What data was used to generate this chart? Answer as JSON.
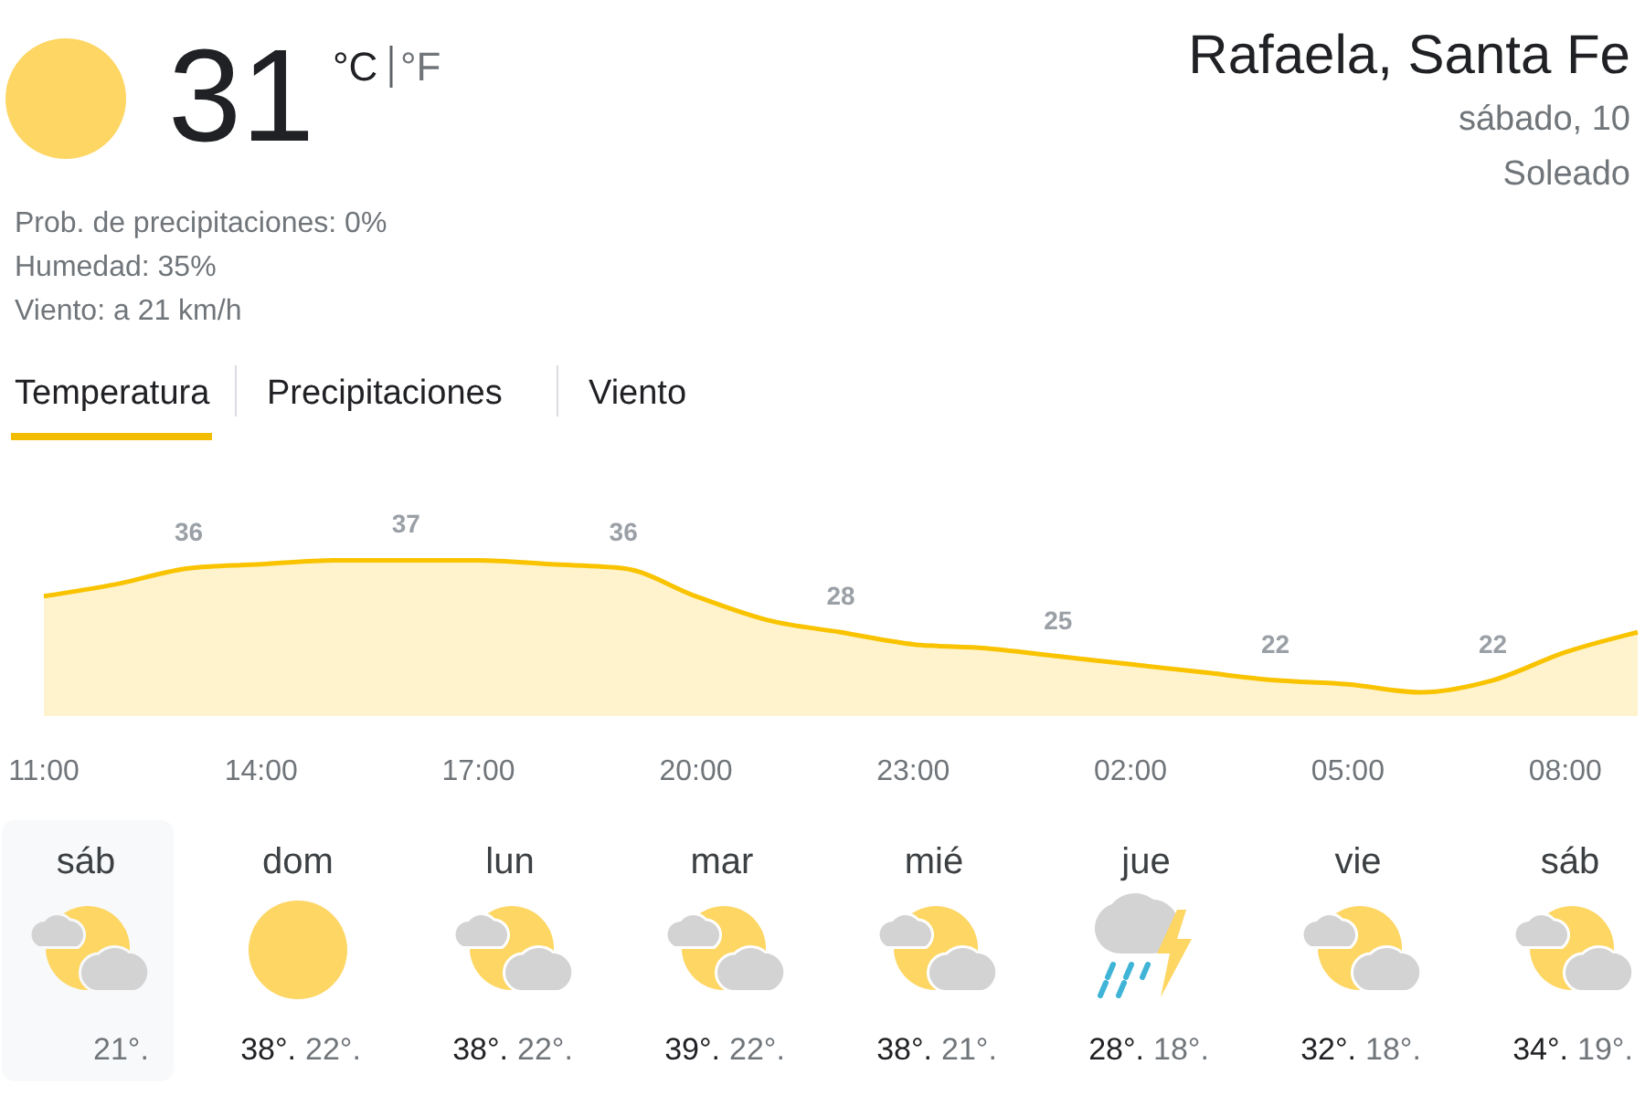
{
  "chart_data": [
    {
      "type": "other",
      "title": "Rafaela, Santa Fe",
      "subtitle": "sábado, 10",
      "annotations": [
        "31",
        "°C",
        "°F",
        "Soleado",
        "Prob. de precipitaciones: 0%",
        "Humedad: 35%",
        "Viento: a 21 km/h",
        "Temperatura",
        "Precipitaciones",
        "Viento"
      ]
    },
    {
      "type": "area",
      "categories": [
        "11:00",
        null,
        null,
        "14:00",
        null,
        null,
        "17:00",
        null,
        null,
        "20:00",
        null,
        null,
        "23:00",
        null,
        null,
        "02:00",
        null,
        null,
        "05:00",
        null,
        null,
        "08:00",
        null
      ],
      "values": [
        32.5,
        34,
        36,
        36.5,
        37,
        37,
        37,
        36.5,
        36,
        32.5,
        29.5,
        28,
        26.5,
        26,
        25,
        24,
        23,
        22,
        21.5,
        20.5,
        22,
        25.5,
        28
      ],
      "value_labels": [
        null,
        null,
        "36",
        null,
        null,
        "37",
        null,
        null,
        "36",
        null,
        null,
        "28",
        null,
        null,
        "25",
        null,
        null,
        "22",
        null,
        null,
        "22",
        null,
        null
      ],
      "color": "#f9c300",
      "tick_labels": "x"
    },
    {
      "type": "other",
      "categories": [
        "sáb",
        "dom",
        "lun",
        "mar",
        "mié",
        "jue",
        "vie",
        "sáb"
      ],
      "series": [
        {
          "values": [
            null,
            38,
            38,
            39,
            38,
            28,
            32,
            34
          ],
          "value_labels": [
            null,
            "38°.",
            "38°.",
            "39°.",
            "38°.",
            "28°.",
            "32°.",
            "34°."
          ]
        },
        {
          "values": [
            21,
            22,
            22,
            22,
            21,
            18,
            18,
            19
          ],
          "value_labels": [
            "21°.",
            "22°.",
            "22°.",
            "22°.",
            "21°.",
            "18°.",
            "18°.",
            "19°."
          ]
        }
      ]
    }
  ]
}
